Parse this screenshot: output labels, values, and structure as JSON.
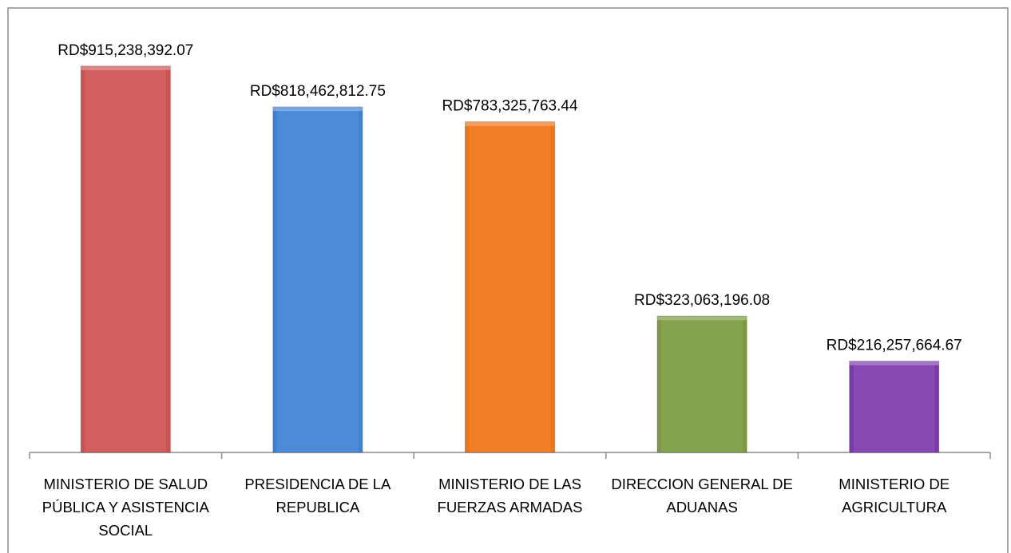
{
  "chart_data": {
    "type": "bar",
    "categories": [
      "MINISTERIO DE SALUD PÚBLICA Y ASISTENCIA SOCIAL",
      "PRESIDENCIA DE LA REPUBLICA",
      "MINISTERIO DE LAS FUERZAS ARMADAS",
      "DIRECCION GENERAL DE ADUANAS",
      "MINISTERIO DE AGRICULTURA"
    ],
    "values": [
      915238392.07,
      818462812.75,
      783325763.44,
      323063196.08,
      216257664.67
    ],
    "value_labels": [
      "RD$915,238,392.07",
      "RD$818,462,812.75",
      "RD$783,325,763.44",
      "RD$323,063,196.08",
      "RD$216,257,664.67"
    ],
    "colors": [
      "#cc5250",
      "#3e82d6",
      "#f07515",
      "#7b9b40",
      "#7b3aab"
    ],
    "ylim": [
      0,
      1000000000
    ]
  }
}
